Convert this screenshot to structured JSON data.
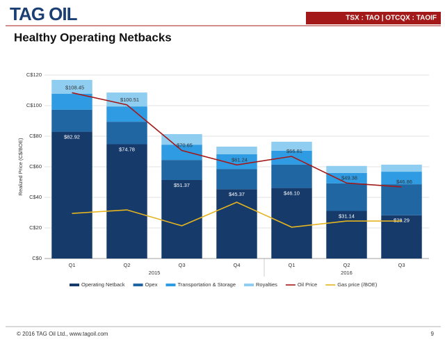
{
  "header": {
    "logo": "TAG OIL",
    "tickers": "TSX : TAO | OTCQX : TAOIF"
  },
  "slide_title": "Healthy Operating Netbacks",
  "footer": {
    "copyright": "© 2016 TAG Oil Ltd., www.tagoil.com",
    "page": "9"
  },
  "chart_data": {
    "type": "stacked_bar_line",
    "y_label": "Realized Price (C$/BOE)",
    "categories": [
      "Q1",
      "Q2",
      "Q3",
      "Q4",
      "Q1",
      "Q2",
      "Q3"
    ],
    "category_groups": [
      "2015",
      "2015",
      "2015",
      "2015",
      "2016",
      "2016",
      "2016"
    ],
    "ylim": [
      0,
      120
    ],
    "yticks": [
      {
        "value": 0,
        "label": "C$0"
      },
      {
        "value": 20,
        "label": "C$20"
      },
      {
        "value": 40,
        "label": "C$40"
      },
      {
        "value": 60,
        "label": "C$60"
      },
      {
        "value": 80,
        "label": "C$80"
      },
      {
        "value": 100,
        "label": "C$100"
      },
      {
        "value": 120,
        "label": "C$120"
      }
    ],
    "grid": true,
    "legend": "bottom",
    "series": [
      {
        "name": "Operating Netback",
        "kind": "bar",
        "color": "#163b6b",
        "values": [
          82.92,
          74.78,
          51.37,
          45.37,
          46.1,
          31.14,
          28.29
        ],
        "value_labels": [
          "$82.92",
          "$74.78",
          "$51.37",
          "$45.37",
          "$46.10",
          "$31.14",
          "$28.29"
        ]
      },
      {
        "name": "Opex",
        "kind": "bar",
        "color": "#1f66a3",
        "values": [
          14.4,
          14.7,
          13.1,
          13.2,
          15.3,
          18,
          20.3
        ]
      },
      {
        "name": "Transportation & Storage",
        "kind": "bar",
        "color": "#2e9be2",
        "values": [
          10.4,
          10,
          10,
          9.6,
          9.1,
          6.8,
          8.2
        ]
      },
      {
        "name": "Royalties",
        "kind": "bar",
        "color": "#8fcdf1",
        "values": [
          9.1,
          9.1,
          6.9,
          5,
          5.9,
          4.6,
          4.6
        ]
      },
      {
        "name": "Oil Price",
        "kind": "line",
        "color": "#a31919",
        "values": [
          108.45,
          100.51,
          70.65,
          61.24,
          66.81,
          49.38,
          46.86
        ],
        "value_labels": [
          "$108.45",
          "$100.51",
          "$70.65",
          "$61.24",
          "$66.81",
          "$49.38",
          "$46.86"
        ]
      },
      {
        "name": "Gas price (/BOE)",
        "kind": "line",
        "color": "#e6b41e",
        "values": [
          29.5,
          31.8,
          21.4,
          36.8,
          20.5,
          24.5,
          24.5
        ]
      }
    ]
  }
}
